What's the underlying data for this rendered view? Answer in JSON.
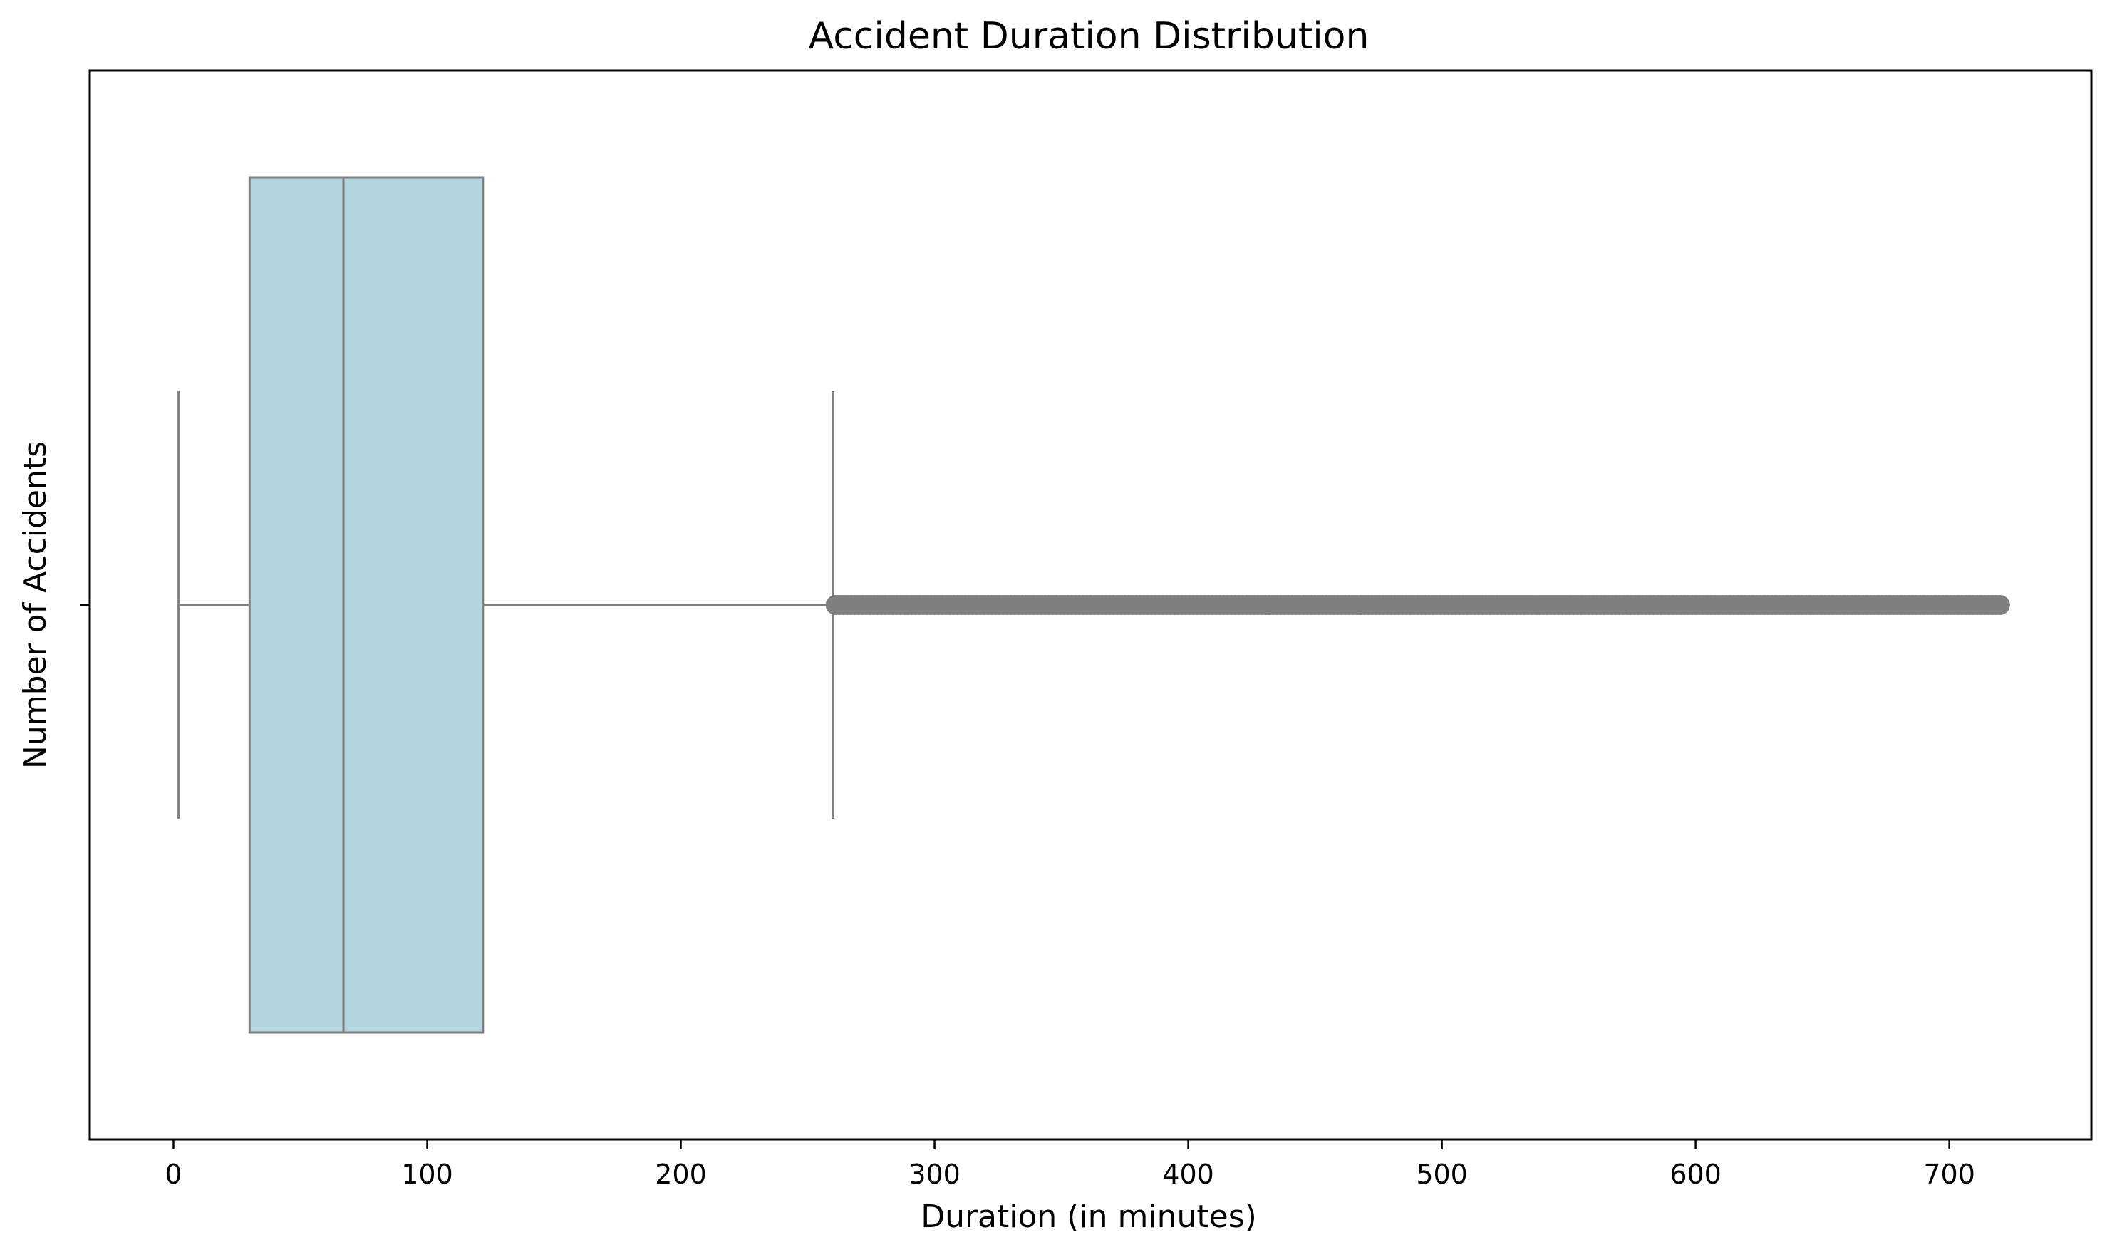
{
  "chart_data": {
    "type": "boxplot",
    "orientation": "horizontal",
    "title": "Accident Duration Distribution",
    "xlabel": "Duration (in minutes)",
    "ylabel": "Number of Accidents",
    "xlim": [
      -33,
      756
    ],
    "xticks": [
      0,
      100,
      200,
      300,
      400,
      500,
      600,
      700
    ],
    "xtick_labels": [
      "0",
      "100",
      "200",
      "300",
      "400",
      "500",
      "600",
      "700"
    ],
    "yticks": [
      ""
    ],
    "grid": false,
    "legend": "none",
    "box": {
      "whisker_low": 2,
      "q1": 30,
      "median": 67,
      "q3": 122,
      "whisker_high": 260,
      "outliers_range": [
        261,
        720
      ]
    },
    "colors": {
      "box_fill": "#b3d5e0",
      "box_edge": "#7f7f7f",
      "outliers": "#7f7f7f"
    }
  }
}
